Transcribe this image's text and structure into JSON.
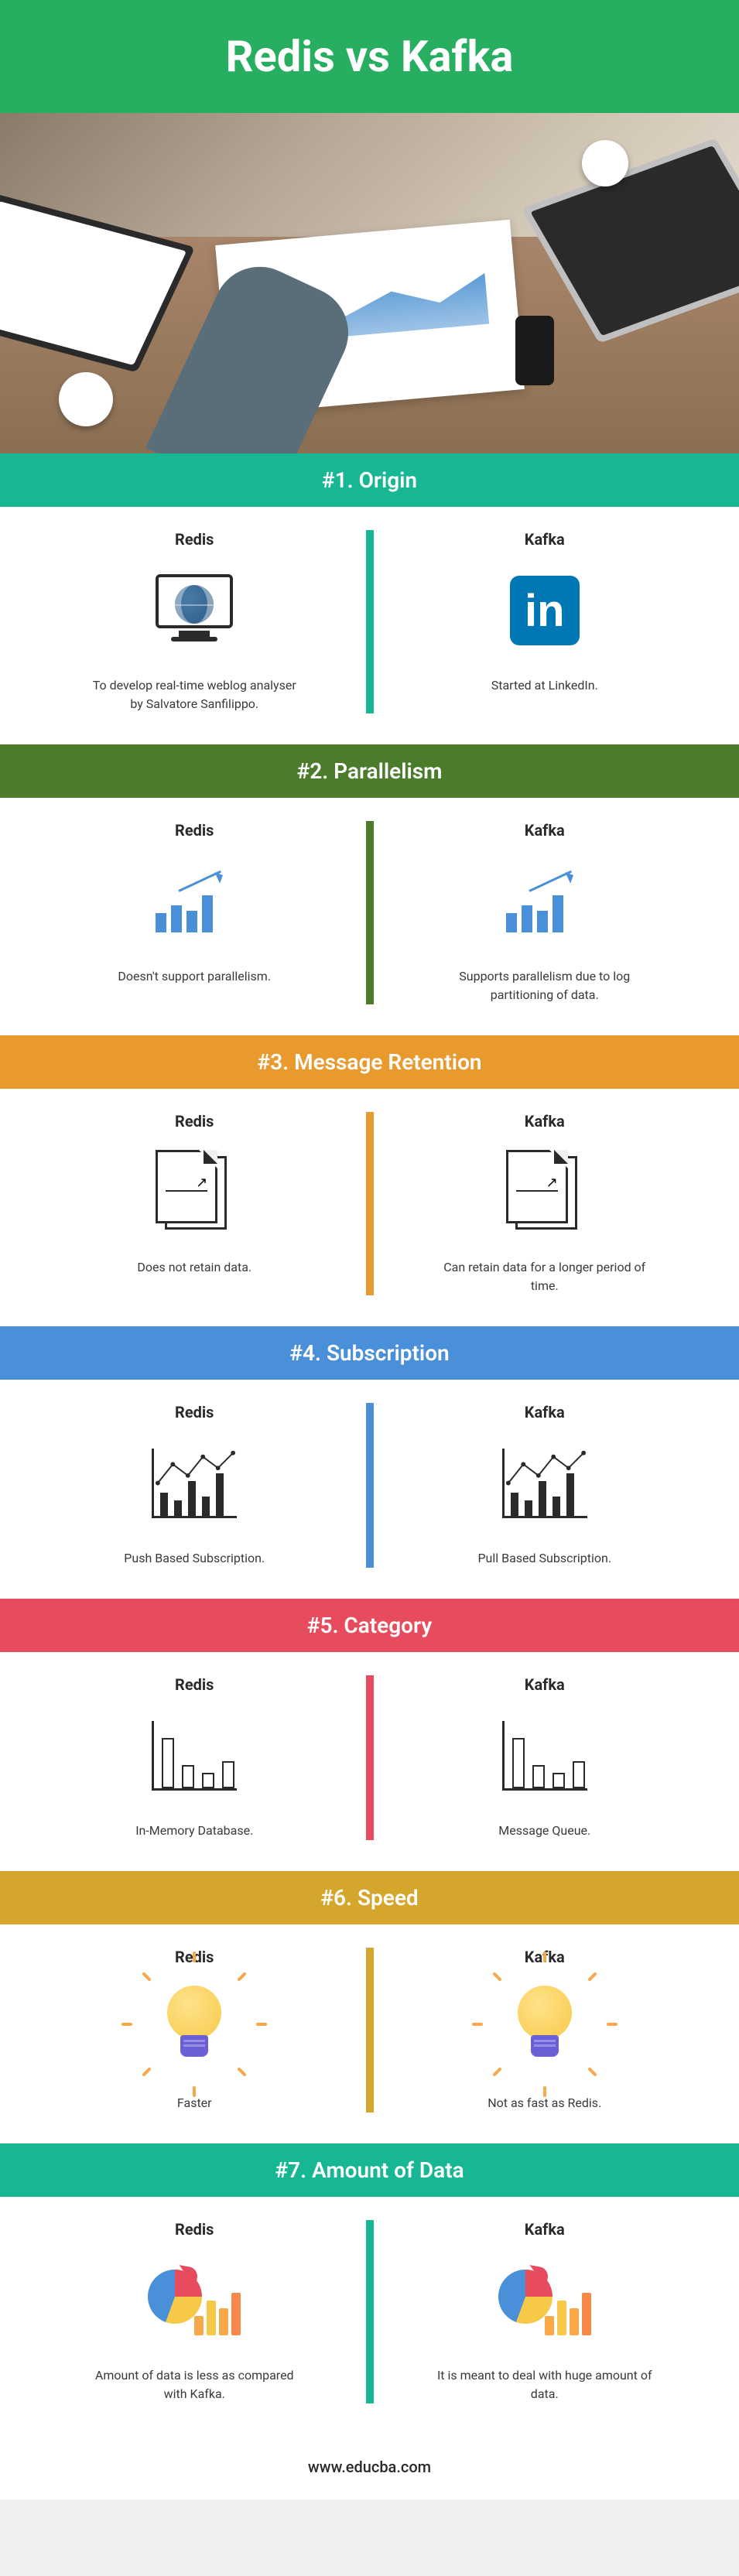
{
  "page_title": "Redis vs Kafka",
  "footer_url": "www.educba.com",
  "section_header_colors": {
    "teal": "#17b794",
    "green": "#4a7c2c",
    "orange": "#e89a2e",
    "blue": "#4a90d9",
    "red": "#e74c5e",
    "gold": "#d4a72c"
  },
  "column_labels": {
    "left": "Redis",
    "right": "Kafka"
  },
  "sections": [
    {
      "id": "origin",
      "header": "#1. Origin",
      "header_color_key": "teal",
      "divider_color": "#17b794",
      "left_icon": "monitor-globe",
      "right_icon": "linkedin",
      "left_desc": "To develop real-time weblog analyser by Salvatore Sanfilippo.",
      "right_desc": "Started at LinkedIn."
    },
    {
      "id": "parallelism",
      "header": "#2. Parallelism",
      "header_color_key": "green",
      "divider_color": "#4a7c2c",
      "left_icon": "chart-arrow",
      "right_icon": "chart-arrow",
      "left_desc": "Doesn't support parallelism.",
      "right_desc": "Supports parallelism due to log partitioning of data."
    },
    {
      "id": "retention",
      "header": "#3. Message Retention",
      "header_color_key": "orange",
      "divider_color": "#e89a2e",
      "left_icon": "docs-chart",
      "right_icon": "docs-chart",
      "left_desc": "Does not retain data.",
      "right_desc": "Can retain data for a longer period of time."
    },
    {
      "id": "subscription",
      "header": "#4. Subscription",
      "header_color_key": "blue",
      "divider_color": "#4a90d9",
      "left_icon": "line-chart",
      "right_icon": "line-chart",
      "left_desc": "Push Based Subscription.",
      "right_desc": "Pull Based Subscription."
    },
    {
      "id": "category",
      "header": "#5. Category",
      "header_color_key": "red",
      "divider_color": "#e74c5e",
      "left_icon": "box-chart",
      "right_icon": "box-chart",
      "left_desc": "In-Memory Database.",
      "right_desc": "Message Queue."
    },
    {
      "id": "speed",
      "header": "#6. Speed",
      "header_color_key": "gold",
      "divider_color": "#d4a72c",
      "left_icon": "bulb",
      "right_icon": "bulb",
      "left_desc": "Faster",
      "right_desc": "Not as fast as Redis."
    },
    {
      "id": "data",
      "header": "#7. Amount of Data",
      "header_color_key": "teal",
      "divider_color": "#17b794",
      "left_icon": "pie-bar",
      "right_icon": "pie-bar",
      "left_desc": "Amount of data is less as compared with Kafka.",
      "right_desc": "It is meant to deal with huge amount of data."
    }
  ]
}
